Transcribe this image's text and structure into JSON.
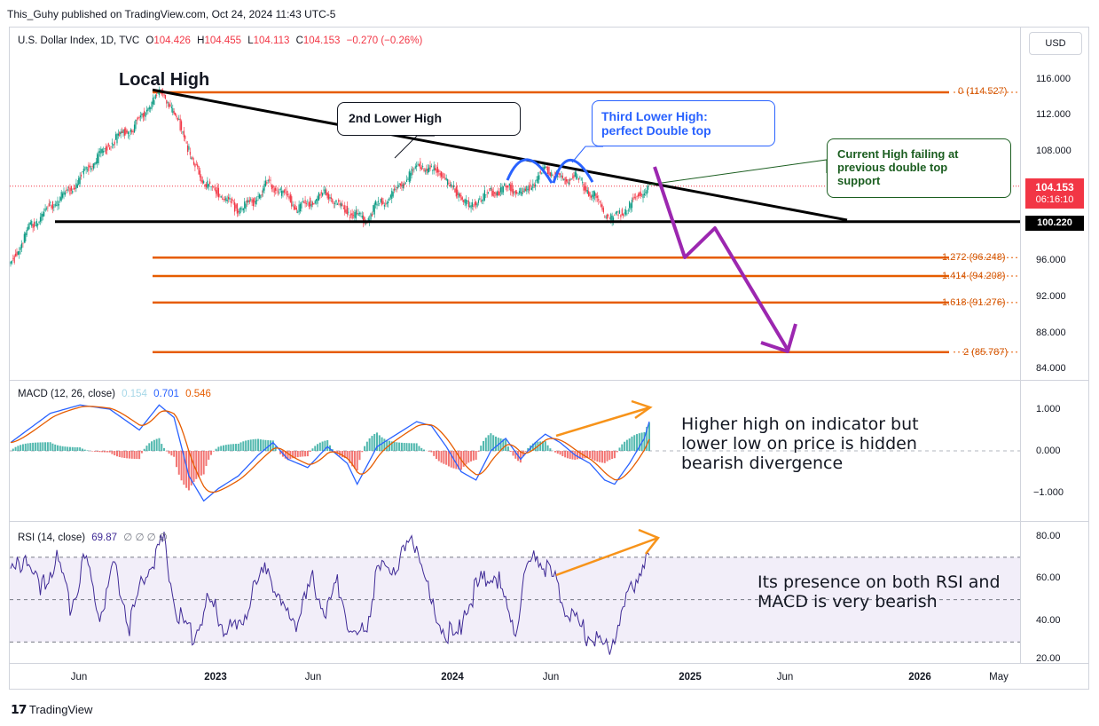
{
  "header": {
    "text": "This_Guhy published on TradingView.com, Oct 24, 2024 11:43 UTC-5"
  },
  "legend": {
    "symbol": "U.S. Dollar Index, 1D, TVC",
    "o_label": "O",
    "o": "104.426",
    "h_label": "H",
    "h": "104.455",
    "l_label": "L",
    "l": "104.113",
    "c_label": "C",
    "c": "104.153",
    "change": "−0.270 (−0.26%)"
  },
  "currency_button": "USD",
  "price_axis": [
    "116.000",
    "112.000",
    "108.000",
    "96.000",
    "92.000",
    "88.000",
    "84.000"
  ],
  "price_pills": {
    "last_price": "104.153",
    "countdown": "06:16:10",
    "support": "100.220"
  },
  "time_axis": [
    {
      "label": "Jun",
      "bold": false
    },
    {
      "label": "2023",
      "bold": true
    },
    {
      "label": "Jun",
      "bold": false
    },
    {
      "label": "2024",
      "bold": true
    },
    {
      "label": "Jun",
      "bold": false
    },
    {
      "label": "2025",
      "bold": true
    },
    {
      "label": "Jun",
      "bold": false
    },
    {
      "label": "2026",
      "bold": true
    },
    {
      "label": "May",
      "bold": false
    }
  ],
  "annotations": {
    "local_high": "Local High",
    "second_lower_high": "2nd Lower High",
    "third_lower_high": [
      "Third Lower High:",
      "perfect Double top"
    ],
    "current_high": [
      "Current High failing at",
      "previous double top",
      "support"
    ],
    "macd_note": [
      "Higher high on indicator but",
      "lower low on price is hidden",
      "bearish divergence"
    ],
    "rsi_note": [
      "Its presence on both RSI and",
      "MACD is very bearish"
    ]
  },
  "fib_levels": [
    {
      "label": "0 (114.527)",
      "price": 114.527
    },
    {
      "label": "1.272 (96.248)",
      "price": 96.248
    },
    {
      "label": "1.414 (94.208)",
      "price": 94.208
    },
    {
      "label": "1.618 (91.276)",
      "price": 91.276
    },
    {
      "label": "2 (85.787)",
      "price": 85.787
    }
  ],
  "macd": {
    "label": "MACD (12, 26, close)",
    "hist": "0.154",
    "macd": "0.701",
    "signal": "0.546",
    "axis": [
      "1.000",
      "0.000",
      "−1.000"
    ]
  },
  "rsi": {
    "label": "RSI (14, close)",
    "value": "69.87",
    "extras": "∅ ∅ ∅ ∅",
    "axis": [
      "80.00",
      "60.00",
      "40.00",
      "20.00"
    ]
  },
  "footer": "TradingView",
  "colors": {
    "fib": "#e65c00",
    "trend": "#000000",
    "arrow": "#9c27b0",
    "blue": "#2962ff",
    "orange": "#f7931a",
    "up": "#089981",
    "down": "#f23645",
    "rsi": "#3f2a96",
    "green_note": "#1b5e20"
  },
  "chart_data": {
    "type": "candlestick",
    "title": "U.S. Dollar Index, 1D, TVC",
    "ylim": [
      83,
      118
    ],
    "x_ticks": [
      "Jun",
      "2023",
      "Jun",
      "2024",
      "Jun",
      "2025",
      "Jun",
      "2026",
      "May"
    ],
    "last_price": 104.153,
    "local_high": 114.8,
    "support_level": 100.22,
    "price_path": [
      [
        0,
        95.2
      ],
      [
        4,
        99.5
      ],
      [
        8,
        101.8
      ],
      [
        12,
        103.6
      ],
      [
        17,
        106.8
      ],
      [
        21,
        109.2
      ],
      [
        25,
        110.6
      ],
      [
        28,
        112.8
      ],
      [
        31,
        114.8
      ],
      [
        33,
        112.3
      ],
      [
        35,
        110.4
      ],
      [
        37,
        106.6
      ],
      [
        40,
        104.2
      ],
      [
        43,
        103.0
      ],
      [
        46,
        101.6
      ],
      [
        49,
        102.3
      ],
      [
        52,
        104.4
      ],
      [
        55,
        103.6
      ],
      [
        58,
        101.8
      ],
      [
        61,
        102.4
      ],
      [
        64,
        103.4
      ],
      [
        67,
        101.7
      ],
      [
        70,
        100.9
      ],
      [
        72,
        100.4
      ],
      [
        74,
        101.9
      ],
      [
        77,
        103.1
      ],
      [
        80,
        104.9
      ],
      [
        83,
        106.6
      ],
      [
        85,
        105.8
      ],
      [
        87,
        105.9
      ],
      [
        89,
        104.0
      ],
      [
        91,
        103.3
      ],
      [
        93,
        101.6
      ],
      [
        95,
        102.9
      ],
      [
        98,
        103.6
      ],
      [
        101,
        104.0
      ],
      [
        104,
        103.3
      ],
      [
        106,
        104.6
      ],
      [
        108,
        105.8
      ],
      [
        110,
        105.7
      ],
      [
        112,
        104.6
      ],
      [
        114,
        105.5
      ],
      [
        116,
        104.1
      ],
      [
        118,
        103.2
      ],
      [
        120,
        101.3
      ],
      [
        122,
        100.5
      ],
      [
        124,
        101.3
      ],
      [
        127,
        103.0
      ],
      [
        129,
        104.1
      ]
    ],
    "macd_path": [
      [
        0,
        0.2
      ],
      [
        8,
        0.9
      ],
      [
        14,
        1.1
      ],
      [
        20,
        1.0
      ],
      [
        26,
        0.5
      ],
      [
        30,
        1.1
      ],
      [
        33,
        0.8
      ],
      [
        36,
        -0.6
      ],
      [
        39,
        -1.2
      ],
      [
        42,
        -0.9
      ],
      [
        46,
        -0.6
      ],
      [
        50,
        -0.1
      ],
      [
        53,
        0.2
      ],
      [
        56,
        -0.2
      ],
      [
        60,
        -0.4
      ],
      [
        64,
        0.1
      ],
      [
        68,
        -0.3
      ],
      [
        70,
        -0.8
      ],
      [
        74,
        0.1
      ],
      [
        78,
        0.4
      ],
      [
        82,
        0.7
      ],
      [
        85,
        0.6
      ],
      [
        88,
        0.1
      ],
      [
        91,
        -0.5
      ],
      [
        94,
        -0.7
      ],
      [
        97,
        0.0
      ],
      [
        100,
        0.3
      ],
      [
        103,
        -0.2
      ],
      [
        106,
        0.2
      ],
      [
        108,
        0.4
      ],
      [
        111,
        0.2
      ],
      [
        114,
        -0.1
      ],
      [
        117,
        -0.3
      ],
      [
        120,
        -0.7
      ],
      [
        122,
        -0.8
      ],
      [
        125,
        -0.3
      ],
      [
        128,
        0.3
      ],
      [
        129,
        0.7
      ]
    ],
    "rsi_path": [
      [
        0,
        60
      ],
      [
        3,
        72
      ],
      [
        6,
        52
      ],
      [
        9,
        70
      ],
      [
        12,
        48
      ],
      [
        15,
        68
      ],
      [
        18,
        44
      ],
      [
        21,
        66
      ],
      [
        24,
        38
      ],
      [
        27,
        62
      ],
      [
        29,
        70
      ],
      [
        31,
        78
      ],
      [
        33,
        50
      ],
      [
        35,
        36
      ],
      [
        37,
        34
      ],
      [
        40,
        50
      ],
      [
        43,
        38
      ],
      [
        46,
        34
      ],
      [
        49,
        54
      ],
      [
        52,
        66
      ],
      [
        55,
        44
      ],
      [
        58,
        40
      ],
      [
        61,
        58
      ],
      [
        64,
        44
      ],
      [
        66,
        60
      ],
      [
        68,
        40
      ],
      [
        70,
        28
      ],
      [
        72,
        40
      ],
      [
        74,
        62
      ],
      [
        77,
        66
      ],
      [
        80,
        72
      ],
      [
        82,
        78
      ],
      [
        84,
        56
      ],
      [
        86,
        40
      ],
      [
        88,
        36
      ],
      [
        90,
        30
      ],
      [
        92,
        48
      ],
      [
        95,
        58
      ],
      [
        98,
        64
      ],
      [
        100,
        46
      ],
      [
        102,
        38
      ],
      [
        104,
        62
      ],
      [
        106,
        72
      ],
      [
        108,
        66
      ],
      [
        110,
        58
      ],
      [
        112,
        48
      ],
      [
        114,
        40
      ],
      [
        116,
        34
      ],
      [
        118,
        30
      ],
      [
        120,
        26
      ],
      [
        122,
        34
      ],
      [
        124,
        46
      ],
      [
        126,
        58
      ],
      [
        128,
        68
      ],
      [
        129,
        70
      ]
    ],
    "rsi_bands": [
      70,
      50,
      30
    ],
    "macd_ylim": [
      -1.3,
      1.3
    ],
    "rsi_ylim": [
      20,
      85
    ]
  }
}
